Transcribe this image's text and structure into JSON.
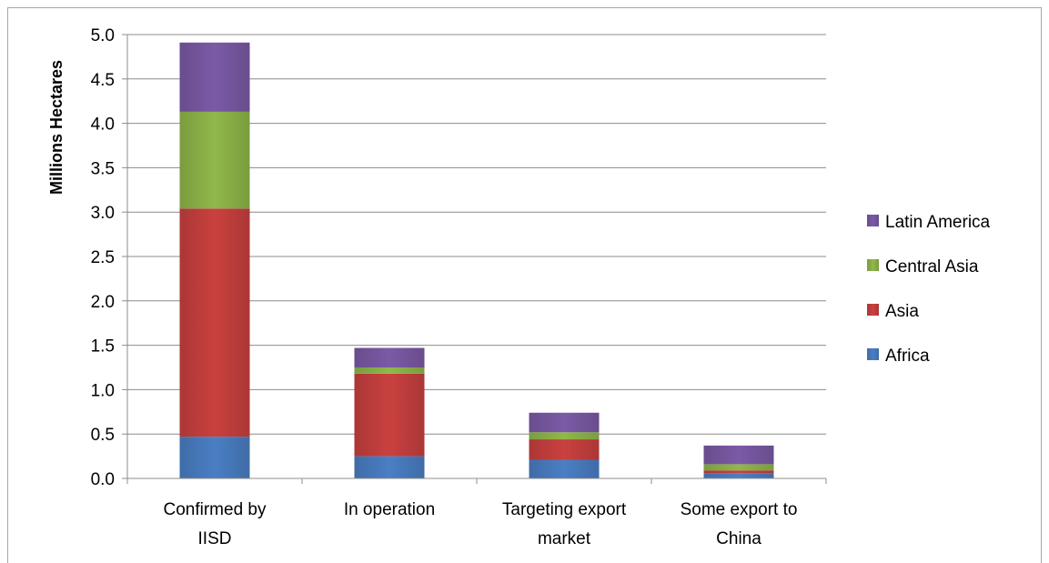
{
  "chart_data": {
    "type": "bar",
    "stacked": true,
    "title": "",
    "xlabel": "",
    "ylabel": "Millions Hectares",
    "ylim": [
      0,
      5.0
    ],
    "yticks": [
      "0.0",
      "0.5",
      "1.0",
      "1.5",
      "2.0",
      "2.5",
      "3.0",
      "3.5",
      "4.0",
      "4.5",
      "5.0"
    ],
    "grid": true,
    "legend_position": "right",
    "categories": [
      [
        "Confirmed by",
        "IISD"
      ],
      [
        "In operation"
      ],
      [
        "Targeting export",
        "market"
      ],
      [
        "Some export to",
        "China"
      ]
    ],
    "series": [
      {
        "name": "Africa",
        "color": "#4a7fc4",
        "values": [
          0.47,
          0.25,
          0.21,
          0.06
        ]
      },
      {
        "name": "Asia",
        "color": "#c9413f",
        "values": [
          2.57,
          0.93,
          0.23,
          0.03
        ]
      },
      {
        "name": "Central Asia",
        "color": "#90b84a",
        "values": [
          1.09,
          0.07,
          0.08,
          0.07
        ]
      },
      {
        "name": "Latin America",
        "color": "#7b5aa6",
        "values": [
          0.78,
          0.22,
          0.22,
          0.21
        ]
      }
    ],
    "legend_order": [
      "Latin America",
      "Central Asia",
      "Asia",
      "Africa"
    ]
  }
}
